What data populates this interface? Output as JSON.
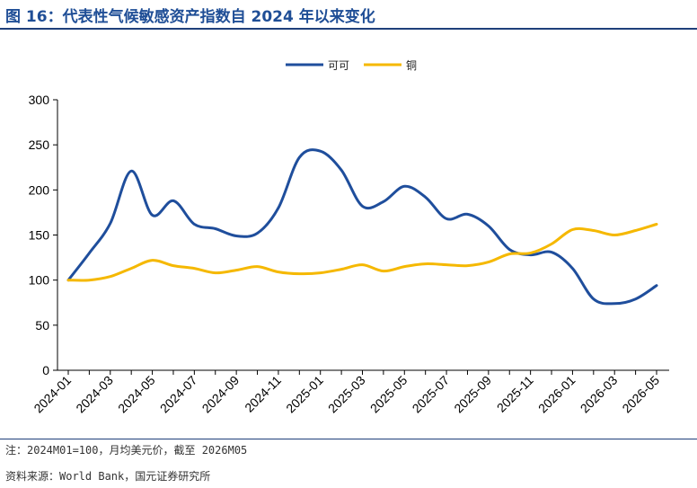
{
  "title": "图 16：代表性气候敏感资产指数自 2024 年以来变化",
  "note": "注：2024M01=100，月均美元价，截至 2026M05",
  "source": "资料来源：World Bank，国元证券研究所",
  "chart_data": {
    "type": "line",
    "title": "图 16：代表性气候敏感资产指数自 2024 年以来变化",
    "xlabel": "",
    "ylabel": "",
    "ylim": [
      0,
      300
    ],
    "yticks": [
      "0",
      "50",
      "100",
      "150",
      "200",
      "250",
      "300"
    ],
    "grid": false,
    "legend_position": "top-center",
    "categories": [
      "2024-01",
      "2024-02",
      "2024-03",
      "2024-04",
      "2024-05",
      "2024-06",
      "2024-07",
      "2024-08",
      "2024-09",
      "2024-10",
      "2024-11",
      "2024-12",
      "2025-01",
      "2025-02",
      "2025-03",
      "2025-04",
      "2025-05",
      "2025-06",
      "2025-07",
      "2025-08",
      "2025-09",
      "2025-10",
      "2025-11",
      "2025-12",
      "2026-01",
      "2026-02",
      "2026-03",
      "2026-04",
      "2026-05"
    ],
    "tick_labels": [
      "2024-01",
      "2024-03",
      "2024-05",
      "2024-07",
      "2024-09",
      "2024-11",
      "2025-01",
      "2025-03",
      "2025-05",
      "2025-07",
      "2025-09",
      "2025-11",
      "2026-01",
      "2026-03",
      "2026-05"
    ],
    "series": [
      {
        "name": "可可",
        "color": "#1f4e9c",
        "values": [
          100,
          130,
          163,
          221,
          172,
          188,
          162,
          157,
          149,
          152,
          180,
          236,
          243,
          222,
          182,
          187,
          204,
          192,
          168,
          173,
          160,
          134,
          128,
          131,
          113,
          79,
          74,
          79,
          94
        ]
      },
      {
        "name": "铜",
        "color": "#f5b800",
        "values": [
          100,
          100,
          104,
          113,
          122,
          116,
          113,
          108,
          111,
          115,
          109,
          107,
          108,
          112,
          117,
          110,
          115,
          118,
          117,
          116,
          120,
          129,
          130,
          140,
          156,
          155,
          150,
          155,
          162
        ]
      }
    ]
  }
}
